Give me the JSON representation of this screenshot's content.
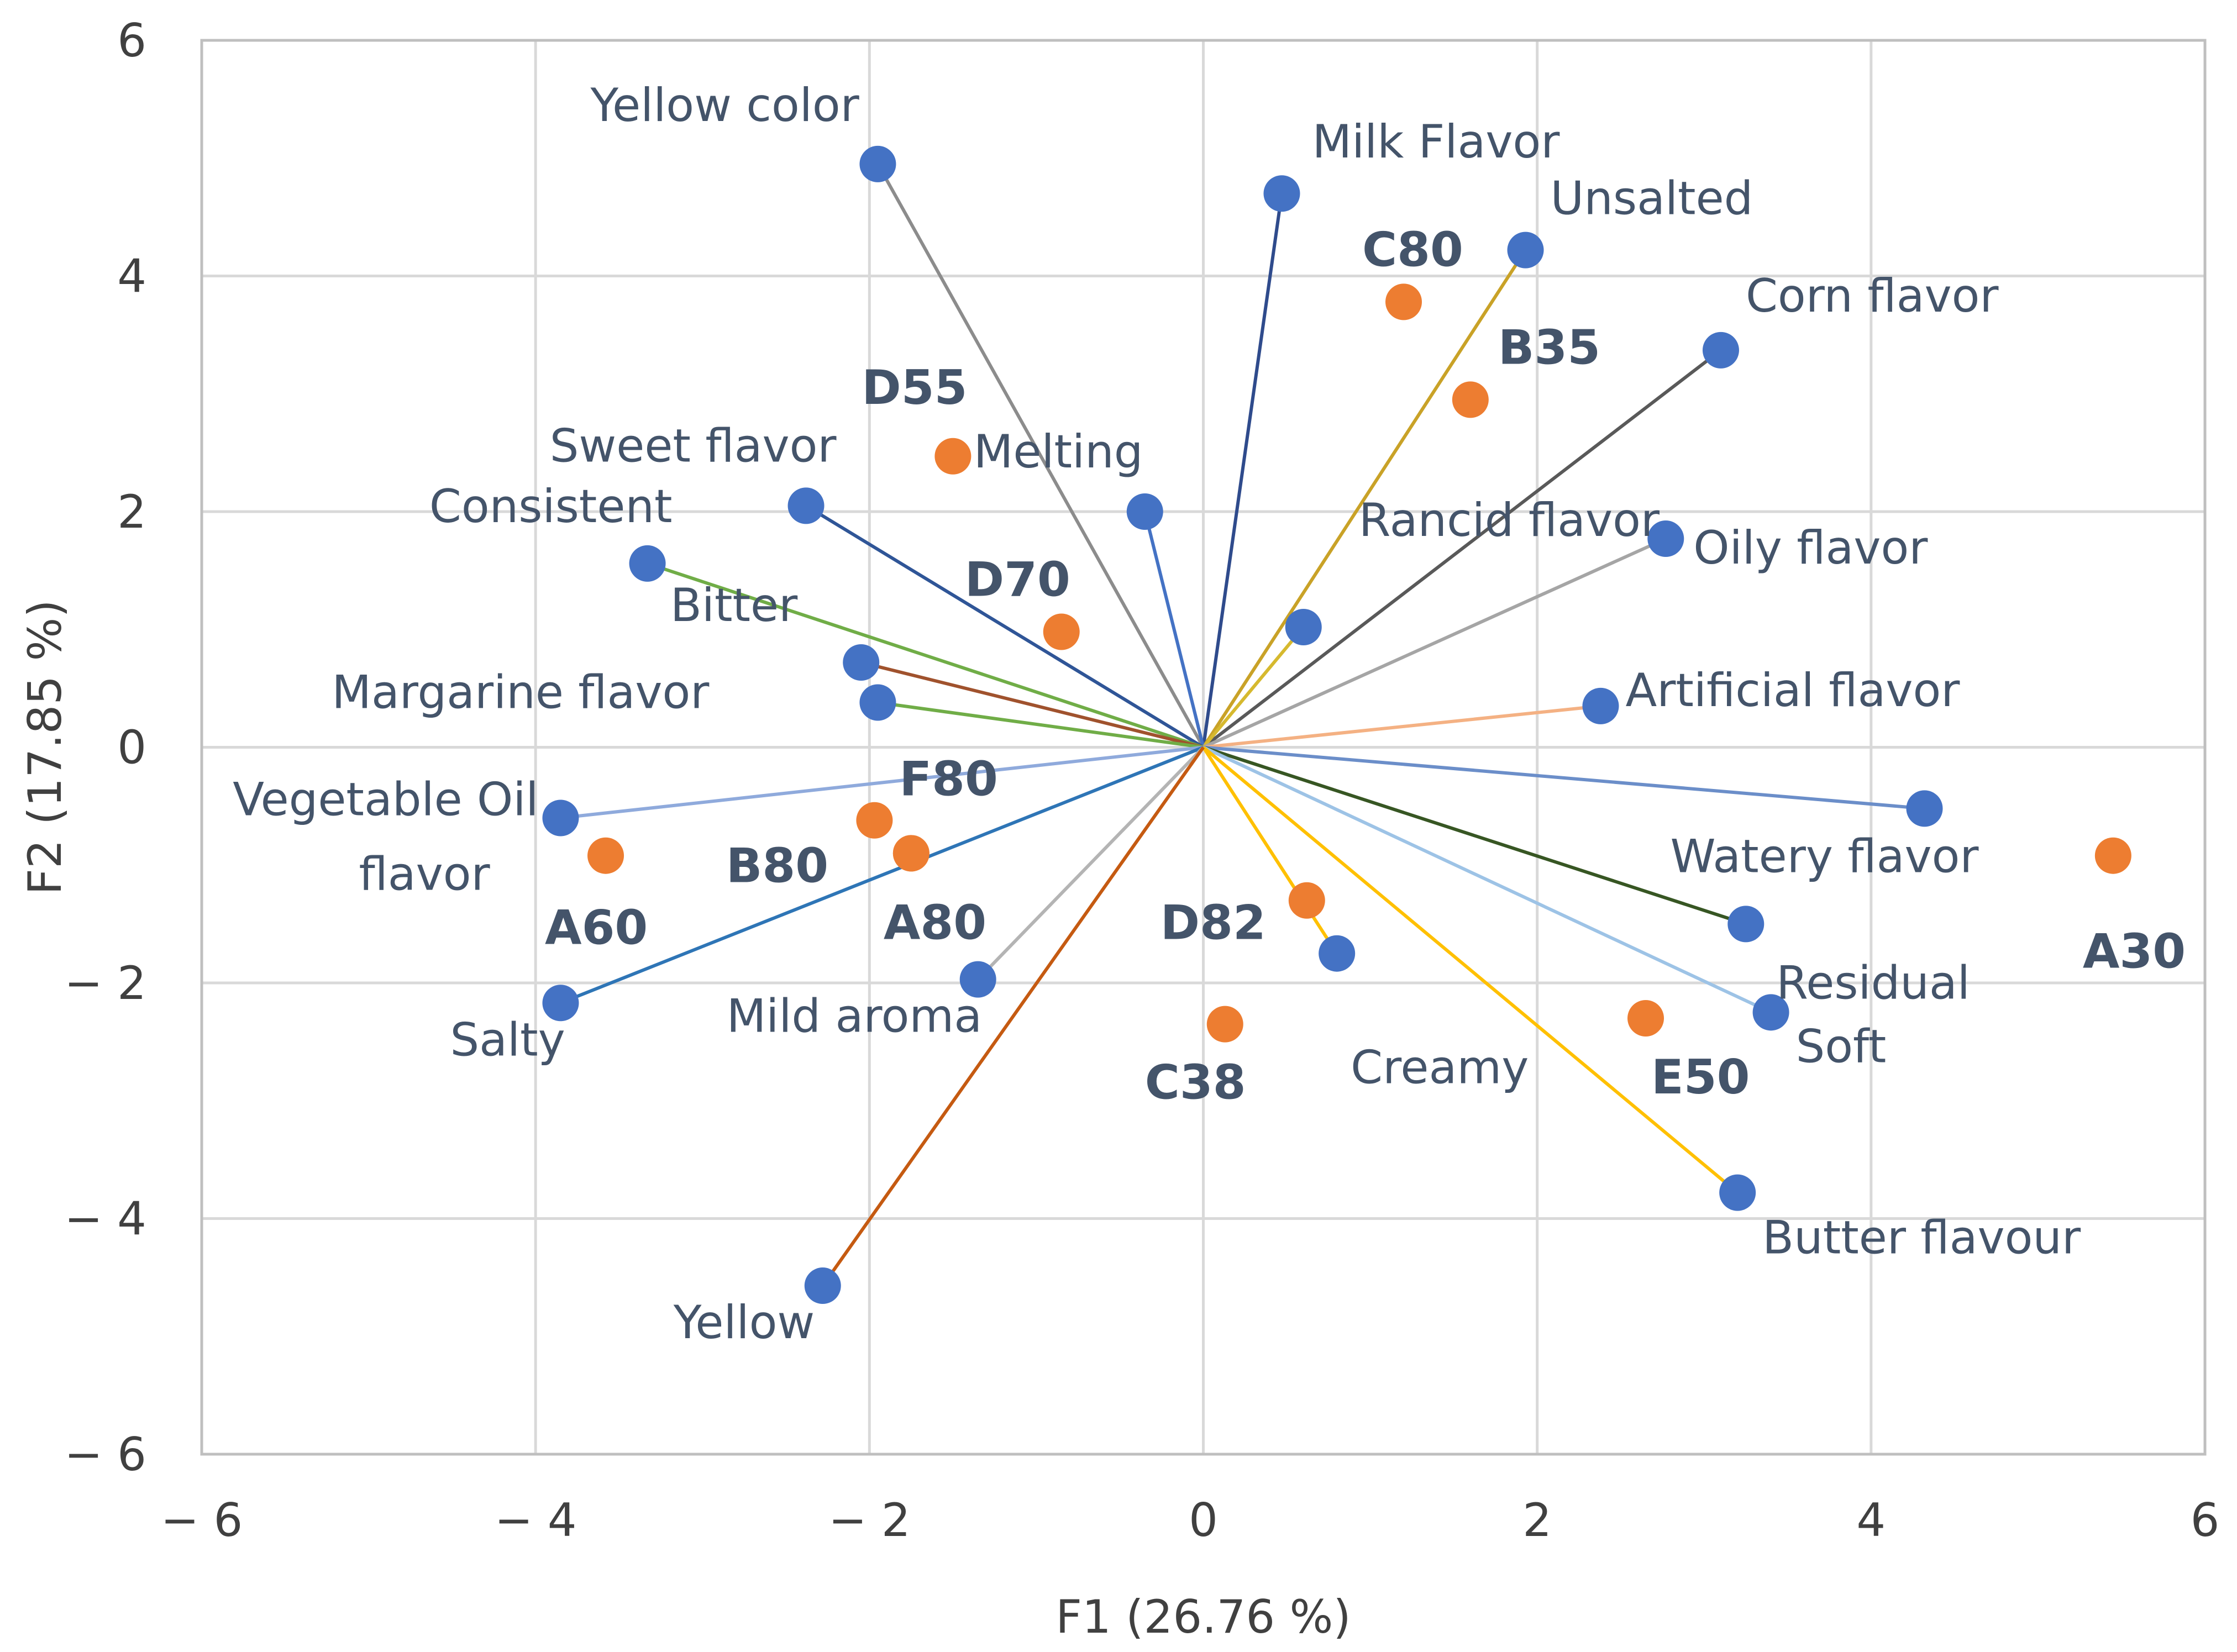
{
  "chart_data": {
    "type": "scatter",
    "subtype": "pca-biplot",
    "title": "",
    "xlabel": "F1 (26.76 %)",
    "ylabel": "F2 (17.85 %)",
    "xlim": [
      -6,
      6
    ],
    "ylim": [
      -6,
      6
    ],
    "grid": true,
    "xticks": [
      {
        "value": -6,
        "label": "− 6"
      },
      {
        "value": -4,
        "label": "− 4"
      },
      {
        "value": -2,
        "label": "− 2"
      },
      {
        "value": 0,
        "label": "0"
      },
      {
        "value": 2,
        "label": "2"
      },
      {
        "value": 4,
        "label": "4"
      },
      {
        "value": 6,
        "label": "6"
      }
    ],
    "yticks": [
      {
        "value": 6,
        "label": "6"
      },
      {
        "value": 4,
        "label": "4"
      },
      {
        "value": 2,
        "label": "2"
      },
      {
        "value": 0,
        "label": "0"
      },
      {
        "value": -2,
        "label": "− 2"
      },
      {
        "value": -4,
        "label": "− 4"
      },
      {
        "value": -6,
        "label": "− 6"
      }
    ],
    "variables": [
      {
        "name": "Yellow color",
        "x": -1.95,
        "y": 4.95,
        "color": "#8c8c8c"
      },
      {
        "name": "Milk Flavor",
        "x": 0.47,
        "y": 4.7,
        "color": "#2f4b8c"
      },
      {
        "name": "Unsalted",
        "x": 1.93,
        "y": 4.22,
        "color": "#c9a227"
      },
      {
        "name": "Corn flavor",
        "x": 3.1,
        "y": 3.37,
        "color": "#595959"
      },
      {
        "name": "Melting",
        "x": -0.35,
        "y": 2.0,
        "color": "#4472C4"
      },
      {
        "name": "Sweet flavor",
        "x": -2.38,
        "y": 2.05,
        "color": "#2f5597"
      },
      {
        "name": "Consistent",
        "x": -3.33,
        "y": 1.56,
        "color": "#70AD47"
      },
      {
        "name": "Rancid flavor",
        "x": 0.6,
        "y": 1.02,
        "color": "#d6b92e"
      },
      {
        "name": "Oily flavor",
        "x": 2.77,
        "y": 1.77,
        "color": "#a5a5a5"
      },
      {
        "name": "Bitter",
        "x": -2.05,
        "y": 0.72,
        "color": "#a0522d"
      },
      {
        "name": "Margarine flavor",
        "x": -1.95,
        "y": 0.38,
        "color": "#70AD47"
      },
      {
        "name": "Artificial flavor",
        "x": 2.38,
        "y": 0.35,
        "color": "#F4B183"
      },
      {
        "name": "Vegetable Oil flavor",
        "x": -3.85,
        "y": -0.6,
        "color": "#8faadc"
      },
      {
        "name": "Watery flavor",
        "x": 4.32,
        "y": -0.52,
        "color": "#6b8ec9"
      },
      {
        "name": "Residual",
        "x": 3.25,
        "y": -1.5,
        "color": "#375623"
      },
      {
        "name": "Soft",
        "x": 3.4,
        "y": -2.25,
        "color": "#9dc3e6"
      },
      {
        "name": "Salty",
        "x": -3.85,
        "y": -2.17,
        "color": "#2E75B6"
      },
      {
        "name": "Mild aroma",
        "x": -1.35,
        "y": -1.97,
        "color": "#b4b4b4"
      },
      {
        "name": "Creamy",
        "x": 0.8,
        "y": -1.75,
        "color": "#FFC000"
      },
      {
        "name": "Butter flavour",
        "x": 3.2,
        "y": -3.78,
        "color": "#FFC000"
      },
      {
        "name": "Yellow",
        "x": -2.28,
        "y": -4.57,
        "color": "#C55A11"
      }
    ],
    "observations": [
      {
        "name": "C80",
        "x": 1.2,
        "y": 3.78
      },
      {
        "name": "B35",
        "x": 1.6,
        "y": 2.95
      },
      {
        "name": "D55",
        "x": -1.5,
        "y": 2.47
      },
      {
        "name": "D70",
        "x": -0.85,
        "y": 0.98
      },
      {
        "name": "F80",
        "x": -1.97,
        "y": -0.62
      },
      {
        "name": "B80",
        "x": -1.75,
        "y": -0.9
      },
      {
        "name": "A60",
        "x": -3.58,
        "y": -0.92
      },
      {
        "name": "A80",
        "x": -1.75,
        "y": -0.9
      },
      {
        "name": "D82",
        "x": 0.62,
        "y": -1.3
      },
      {
        "name": "C38",
        "x": 0.13,
        "y": -2.35
      },
      {
        "name": "E50",
        "x": 2.65,
        "y": -2.3
      },
      {
        "name": "A30",
        "x": 5.45,
        "y": -0.92
      }
    ],
    "marker_colors": {
      "variables": "#4472C4",
      "observations": "#ED7D31"
    }
  }
}
